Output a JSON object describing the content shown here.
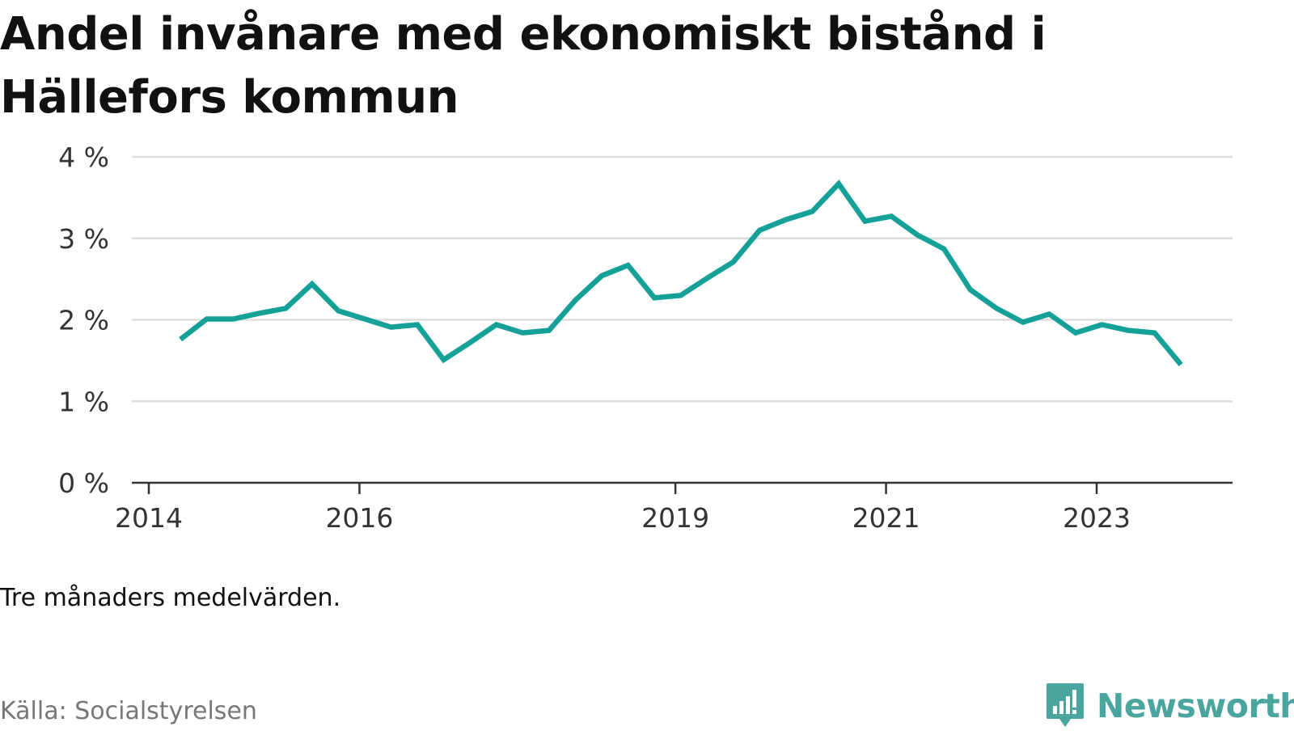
{
  "header": {
    "title": "Andel invånare med ekonomiskt bistånd i Hällefors kommun"
  },
  "note": "Tre månaders medelvärden.",
  "source": "Källa: Socialstyrelsen",
  "brand": {
    "name": "Newsworthy",
    "logo_icon": "newsworthy-logo-icon"
  },
  "colors": {
    "line": "#16a198",
    "brand": "#4aa59e",
    "grid": "#dddddd",
    "axis": "#333333"
  },
  "chart_data": {
    "type": "line",
    "title": "Andel invånare med ekonomiskt bistånd i Hällefors kommun",
    "xlabel": "",
    "ylabel": "",
    "ylim": [
      0,
      4
    ],
    "yticks": [
      0,
      1,
      2,
      3,
      4
    ],
    "ytick_labels": [
      "0 %",
      "1 %",
      "2 %",
      "3 %",
      "4 %"
    ],
    "xlim": [
      2014,
      2024.3
    ],
    "xticks": [
      2014,
      2016,
      2019,
      2021,
      2023
    ],
    "xtick_labels": [
      "2014",
      "2016",
      "2019",
      "2021",
      "2023"
    ],
    "grid": true,
    "series": [
      {
        "x": [
          2014.3,
          2014.55,
          2014.8,
          2015.05,
          2015.3,
          2015.55,
          2015.8,
          2016.05,
          2016.3,
          2016.55,
          2016.8,
          2017.05,
          2017.3,
          2017.55,
          2017.8,
          2018.05,
          2018.3,
          2018.55,
          2018.8,
          2019.05,
          2019.3,
          2019.55,
          2019.8,
          2020.05,
          2020.3,
          2020.55,
          2020.8,
          2021.05,
          2021.3,
          2021.55,
          2021.8,
          2022.05,
          2022.3,
          2022.55,
          2022.8,
          2023.05,
          2023.3,
          2023.55,
          2023.8
        ],
        "values": [
          1.76,
          2.01,
          2.01,
          2.08,
          2.14,
          2.44,
          2.11,
          2.01,
          1.91,
          1.94,
          1.51,
          1.72,
          1.94,
          1.84,
          1.87,
          2.24,
          2.54,
          2.67,
          2.27,
          2.3,
          2.51,
          2.71,
          3.1,
          3.23,
          3.33,
          3.67,
          3.21,
          3.27,
          3.04,
          2.87,
          2.37,
          2.14,
          1.97,
          2.07,
          1.84,
          1.94,
          1.87,
          1.84,
          1.45
        ]
      }
    ]
  }
}
